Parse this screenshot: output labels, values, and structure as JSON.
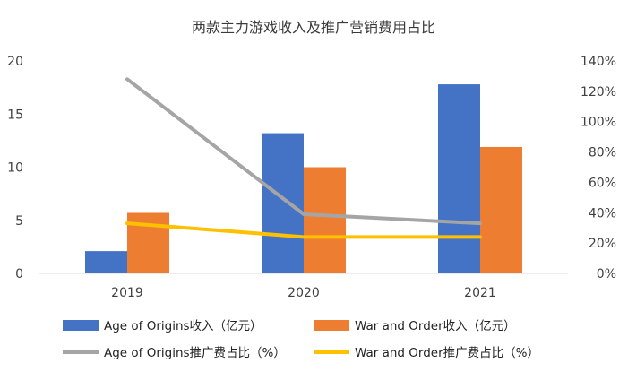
{
  "chart_data": {
    "type": "bar+line",
    "title": "两款主力游戏收入及推广营销费用占比",
    "categories": [
      "2019",
      "2020",
      "2021"
    ],
    "y_left": {
      "ticks": [
        "0",
        "5",
        "10",
        "15",
        "20"
      ],
      "ylim": [
        0,
        20
      ]
    },
    "y_right": {
      "ticks": [
        "0%",
        "20%",
        "40%",
        "60%",
        "80%",
        "100%",
        "120%",
        "140%"
      ],
      "ylim": [
        0,
        140
      ]
    },
    "series": [
      {
        "name": "Age of Origins收入（亿元）",
        "kind": "bar",
        "axis": "left",
        "color": "#4472C4",
        "values": [
          2.1,
          13.2,
          17.8
        ]
      },
      {
        "name": "War and Order收入（亿元）",
        "kind": "bar",
        "axis": "left",
        "color": "#ED7D31",
        "values": [
          5.7,
          10.0,
          11.9
        ]
      },
      {
        "name": "Age of Origins推广费占比（%）",
        "kind": "line",
        "axis": "right",
        "color": "#A5A5A5",
        "values": [
          128,
          39,
          33
        ]
      },
      {
        "name": "War and Order推广费占比（%）",
        "kind": "line",
        "axis": "right",
        "color": "#FFC000",
        "values": [
          33,
          24,
          24
        ]
      }
    ]
  }
}
